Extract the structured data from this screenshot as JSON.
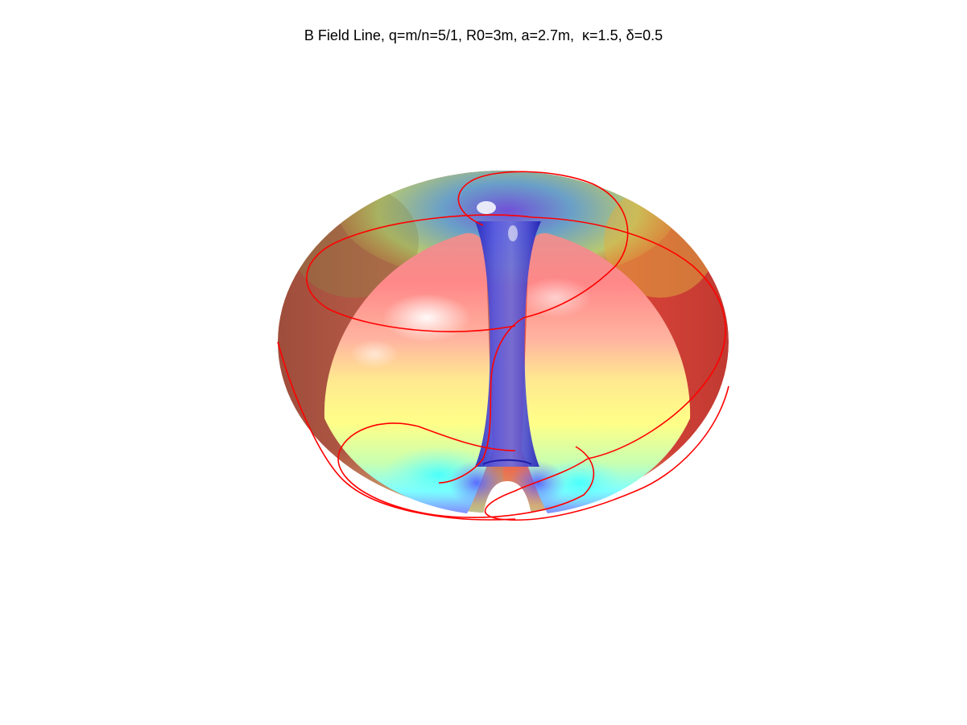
{
  "figure": {
    "title": "B Field Line, q=m/n=5/1, R0=3m, a=2.7m,  κ=1.5, δ=0.5"
  },
  "colors": {
    "background": "#ffffff",
    "field_line": "#ff0000",
    "inner_column": "#3b3bd6"
  }
}
